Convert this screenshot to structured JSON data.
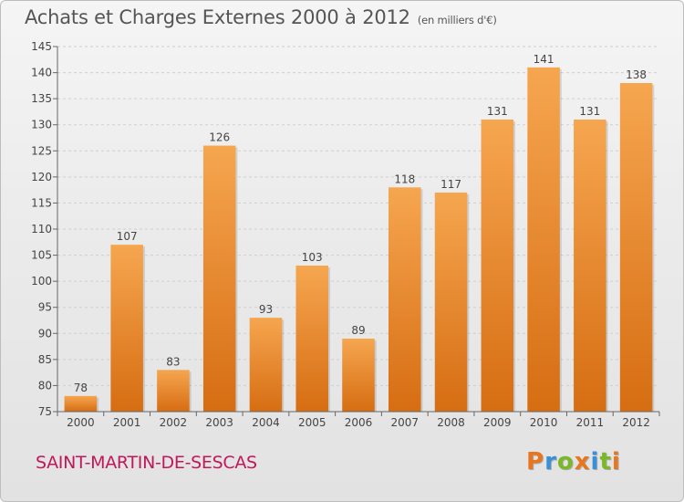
{
  "title": "Achats et Charges Externes 2000 à 2012",
  "subtitle": "(en milliers d'€)",
  "location": "SAINT-MARTIN-DE-SESCAS",
  "logo": {
    "text": "Proxiti",
    "letters": [
      {
        "ch": "P",
        "color": "#e8761e"
      },
      {
        "ch": "r",
        "color": "#3a8fd9"
      },
      {
        "ch": "o",
        "color": "#7ab829"
      },
      {
        "ch": "x",
        "color": "#e8761e"
      },
      {
        "ch": "i",
        "color": "#3a8fd9"
      },
      {
        "ch": "t",
        "color": "#7ab829"
      },
      {
        "ch": "i",
        "color": "#e8761e"
      }
    ]
  },
  "colors": {
    "bar_light": "#f6a650",
    "bar_dark": "#d66d12",
    "axis": "#666666",
    "grid": "#cfcfcf",
    "title": "#555555",
    "location": "#c0185b"
  },
  "chart_data": {
    "type": "bar",
    "categories": [
      "2000",
      "2001",
      "2002",
      "2003",
      "2004",
      "2005",
      "2006",
      "2007",
      "2008",
      "2009",
      "2010",
      "2011",
      "2012"
    ],
    "values": [
      78,
      107,
      83,
      126,
      93,
      103,
      89,
      118,
      117,
      131,
      141,
      131,
      138
    ],
    "ylim": [
      75,
      145
    ],
    "yticks": [
      75,
      80,
      85,
      90,
      95,
      100,
      105,
      110,
      115,
      120,
      125,
      130,
      135,
      140,
      145
    ],
    "grid": true,
    "data_labels": true
  }
}
